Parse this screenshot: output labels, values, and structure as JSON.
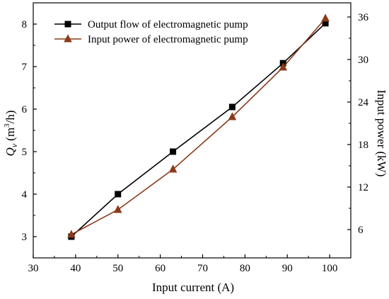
{
  "chart_data": {
    "type": "line",
    "title": "",
    "xlabel": "Input current (A)",
    "ylabel_left": "Q",
    "ylabel_left_sub": "v",
    "ylabel_left_unit": "(m",
    "ylabel_left_unit_sup": "3",
    "ylabel_left_unit_tail": "/h)",
    "ylabel_right": "Input power (kW)",
    "xlim": [
      30,
      105
    ],
    "ylim_left": [
      2.5,
      8.5
    ],
    "ylim_right": [
      2.0,
      38.0
    ],
    "x_ticks": [
      "30",
      "40",
      "50",
      "60",
      "70",
      "80",
      "90",
      "100"
    ],
    "x_tick_values": [
      30,
      40,
      50,
      60,
      70,
      80,
      90,
      100
    ],
    "y_left_ticks": [
      "3",
      "4",
      "5",
      "6",
      "7",
      "8"
    ],
    "y_left_tick_values": [
      3,
      4,
      5,
      6,
      7,
      8
    ],
    "y_right_ticks": [
      "6",
      "12",
      "18",
      "24",
      "30",
      "36"
    ],
    "y_right_tick_values": [
      6,
      12,
      18,
      24,
      30,
      36
    ],
    "grid": false,
    "legend_position": "top-left",
    "series": [
      {
        "name": "Output flow of electromagnetic pump",
        "axis": "left",
        "marker": "square",
        "color": "#000000",
        "x": [
          39,
          50,
          63,
          77,
          89,
          99
        ],
        "y": [
          3.0,
          4.0,
          5.0,
          6.05,
          7.08,
          8.02
        ]
      },
      {
        "name": "Input power of electromagnetic pump",
        "axis": "right",
        "marker": "triangle",
        "color": "#8B3A1A",
        "x": [
          39,
          50,
          63,
          77,
          89,
          99
        ],
        "y": [
          5.3,
          8.8,
          14.5,
          21.9,
          28.9,
          35.8
        ]
      }
    ]
  }
}
